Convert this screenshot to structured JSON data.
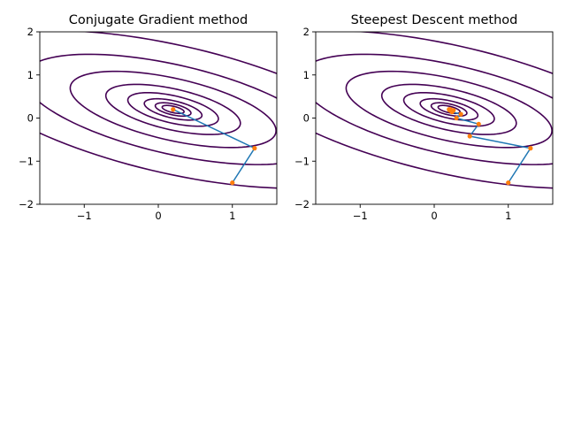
{
  "colors": {
    "contour": "#440154",
    "path": "#1f77b4",
    "points": "#ff7f0e",
    "axis": "#000000",
    "background": "#ffffff"
  },
  "chart_data": [
    {
      "type": "line",
      "title": "Conjugate Gradient method",
      "xlim": [
        -1.6,
        1.6
      ],
      "ylim": [
        -2,
        2
      ],
      "xticks": [
        -1,
        0,
        1
      ],
      "xtick_labels": [
        "−1",
        "0",
        "1"
      ],
      "yticks": [
        -2,
        -1,
        0,
        1,
        2
      ],
      "ytick_labels": [
        "−2",
        "−1",
        "0",
        "1",
        "2"
      ],
      "grid": false,
      "contours": {
        "center": [
          0.2,
          0.2
        ],
        "tilt_degrees": -25,
        "semi_axes": [
          [
            0.16,
            0.07
          ],
          [
            0.26,
            0.12
          ],
          [
            0.42,
            0.19
          ],
          [
            0.66,
            0.3
          ],
          [
            0.98,
            0.45
          ],
          [
            1.5,
            0.68
          ],
          [
            2.18,
            0.98
          ],
          [
            3.1,
            1.41
          ]
        ]
      },
      "series": [
        {
          "x": [
            1.0,
            1.3,
            0.2
          ],
          "y": [
            -1.5,
            -0.7,
            0.2
          ]
        }
      ]
    },
    {
      "type": "line",
      "title": "Steepest Descent method",
      "xlim": [
        -1.6,
        1.6
      ],
      "ylim": [
        -2,
        2
      ],
      "xticks": [
        -1,
        0,
        1
      ],
      "xtick_labels": [
        "−1",
        "0",
        "1"
      ],
      "yticks": [
        -2,
        -1,
        0,
        1,
        2
      ],
      "ytick_labels": [
        "−2",
        "−1",
        "0",
        "1",
        "2"
      ],
      "grid": false,
      "contours": {
        "center": [
          0.2,
          0.2
        ],
        "tilt_degrees": -25,
        "semi_axes": [
          [
            0.16,
            0.07
          ],
          [
            0.26,
            0.12
          ],
          [
            0.42,
            0.19
          ],
          [
            0.66,
            0.3
          ],
          [
            0.98,
            0.45
          ],
          [
            1.5,
            0.68
          ],
          [
            2.18,
            0.98
          ],
          [
            3.1,
            1.41
          ]
        ]
      },
      "series": [
        {
          "x": [
            1.0,
            1.3,
            0.48,
            0.6,
            0.3,
            0.36,
            0.24,
            0.26,
            0.21,
            0.22,
            0.2
          ],
          "y": [
            -1.5,
            -0.7,
            -0.42,
            -0.14,
            0.0,
            0.09,
            0.14,
            0.18,
            0.18,
            0.2,
            0.2
          ]
        }
      ]
    }
  ]
}
